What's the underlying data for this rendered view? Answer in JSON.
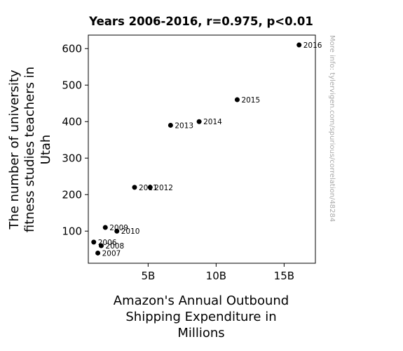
{
  "chart_data": {
    "type": "scatter",
    "title": "Years 2006-2016, r=0.975, p<0.01",
    "xlabel": [
      "Amazon's Annual Outbound",
      "Shipping Expenditure in",
      "Millions"
    ],
    "ylabel": [
      "The number of university",
      "fitness studies teachers in",
      "Utah"
    ],
    "xticks": [
      {
        "value": 5000,
        "label": "5B"
      },
      {
        "value": 10000,
        "label": "10B"
      },
      {
        "value": 15000,
        "label": "15B"
      }
    ],
    "yticks": [
      100,
      200,
      300,
      400,
      500,
      600
    ],
    "xlim": [
      600,
      17300
    ],
    "ylim": [
      12,
      637
    ],
    "grid": false,
    "marker_color": "#000000",
    "points": [
      {
        "label": "2006",
        "x": 1000,
        "y": 70
      },
      {
        "label": "2007",
        "x": 1300,
        "y": 40
      },
      {
        "label": "2008",
        "x": 1550,
        "y": 60
      },
      {
        "label": "2009",
        "x": 1850,
        "y": 110
      },
      {
        "label": "2010",
        "x": 2700,
        "y": 100
      },
      {
        "label": "2011",
        "x": 4000,
        "y": 220
      },
      {
        "label": "2012",
        "x": 5150,
        "y": 220
      },
      {
        "label": "2013",
        "x": 6650,
        "y": 390
      },
      {
        "label": "2014",
        "x": 8750,
        "y": 400
      },
      {
        "label": "2015",
        "x": 11550,
        "y": 460
      },
      {
        "label": "2016",
        "x": 16100,
        "y": 610
      }
    ]
  },
  "watermark": "More info: tylervigen.com/spurious/correlation/48284"
}
